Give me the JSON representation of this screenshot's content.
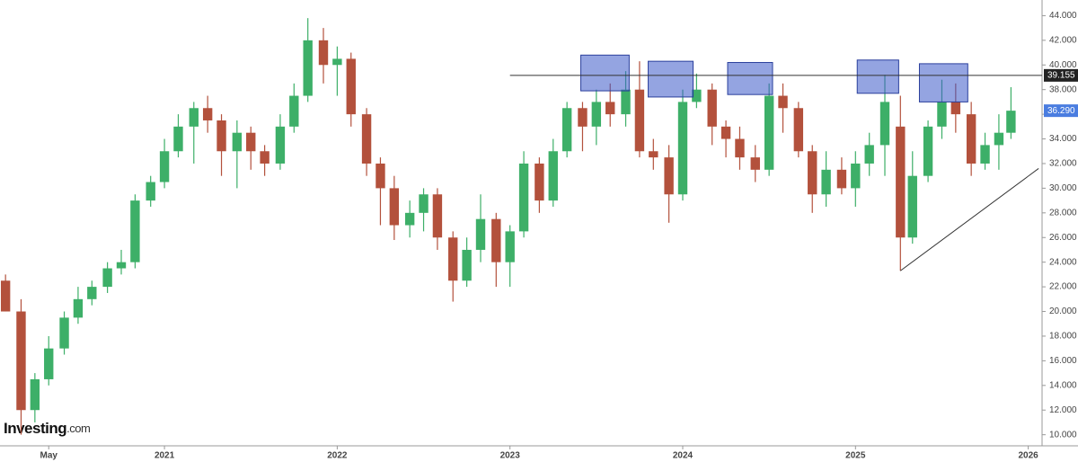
{
  "chart_data": {
    "type": "candlestick",
    "logo_main": "Investing",
    "logo_suffix": ".com",
    "up_color": "#3daf68",
    "down_color": "#b3513c",
    "xlim": [
      2020.048,
      2026.08
    ],
    "xticks": [
      {
        "value": 2020.33,
        "label": "May"
      },
      2021,
      2022,
      2023,
      2024,
      2025,
      2026
    ],
    "ylim": [
      9.1,
      45.27
    ],
    "yticks": [
      {
        "value": 10,
        "label": "10.000"
      },
      {
        "value": 12,
        "label": "12.000"
      },
      {
        "value": 14,
        "label": "14.000"
      },
      {
        "value": 16,
        "label": "16.000"
      },
      {
        "value": 18,
        "label": "18.000"
      },
      {
        "value": 20,
        "label": "20.000"
      },
      {
        "value": 22,
        "label": "22.000"
      },
      {
        "value": 24,
        "label": "24.000"
      },
      {
        "value": 26,
        "label": "26.000"
      },
      {
        "value": 28,
        "label": "28.000"
      },
      {
        "value": 30,
        "label": "30.000"
      },
      {
        "value": 32,
        "label": "32.000"
      },
      {
        "value": 34,
        "label": "34.000"
      },
      {
        "value": 36,
        "label": "36.000"
      },
      {
        "value": 38,
        "label": "38.000"
      },
      {
        "value": 40,
        "label": "40.000"
      },
      {
        "value": 42,
        "label": "42.000"
      },
      {
        "value": 44,
        "label": "44.000"
      }
    ],
    "x": [
      2020.08,
      2020.17,
      2020.25,
      2020.33,
      2020.42,
      2020.5,
      2020.58,
      2020.67,
      2020.75,
      2020.83,
      2020.92,
      2021.0,
      2021.08,
      2021.17,
      2021.25,
      2021.33,
      2021.42,
      2021.5,
      2021.58,
      2021.67,
      2021.75,
      2021.83,
      2021.92,
      2022.0,
      2022.08,
      2022.17,
      2022.25,
      2022.33,
      2022.42,
      2022.5,
      2022.58,
      2022.67,
      2022.75,
      2022.83,
      2022.92,
      2023.0,
      2023.08,
      2023.17,
      2023.25,
      2023.33,
      2023.42,
      2023.5,
      2023.58,
      2023.67,
      2023.75,
      2023.83,
      2023.92,
      2024.0,
      2024.08,
      2024.17,
      2024.25,
      2024.33,
      2024.42,
      2024.5,
      2024.58,
      2024.67,
      2024.75,
      2024.83,
      2024.92,
      2025.0,
      2025.08,
      2025.17,
      2025.26,
      2025.33,
      2025.42,
      2025.5,
      2025.58,
      2025.67,
      2025.75,
      2025.83,
      2025.9
    ],
    "open": [
      22.5,
      20,
      12,
      14.5,
      17,
      19.5,
      21,
      22,
      23.5,
      24,
      29,
      30.5,
      33,
      35,
      36.5,
      35.5,
      33,
      34.5,
      33,
      32,
      35,
      37.5,
      42,
      40,
      40.5,
      36,
      32,
      30,
      27,
      28,
      29.5,
      26,
      22.5,
      25,
      27.5,
      24,
      26.5,
      32,
      29,
      33,
      36.5,
      35,
      37,
      36,
      38,
      33,
      32.5,
      29.5,
      37,
      38,
      35,
      34,
      32.5,
      31.5,
      37.5,
      36.5,
      33,
      29.5,
      31.5,
      30,
      32,
      33.5,
      35,
      26,
      31,
      35,
      37,
      36,
      32,
      33.5,
      34.5
    ],
    "high": [
      23,
      21,
      15,
      18,
      20,
      22,
      22.5,
      24,
      25,
      29.5,
      31,
      34,
      36,
      37,
      37.5,
      36,
      35.5,
      35,
      33.5,
      36,
      38.5,
      43.8,
      43,
      41.5,
      41,
      36.5,
      32.5,
      31,
      29,
      30,
      30,
      26.5,
      26,
      29.5,
      28,
      27,
      33,
      32.5,
      34,
      37,
      37,
      38,
      38.5,
      39.5,
      40.3,
      34,
      33.5,
      38,
      39.3,
      38.5,
      35.5,
      35,
      33.5,
      38.5,
      38.5,
      37,
      33.5,
      33,
      32.5,
      33,
      34.5,
      39.2,
      37.5,
      33,
      35.5,
      38.8,
      38.5,
      37,
      34.5,
      36,
      38.2
    ],
    "low": [
      20,
      10,
      11,
      14,
      16.5,
      19,
      20.5,
      21.5,
      23,
      23.5,
      28.5,
      30,
      32.5,
      32,
      34.5,
      31,
      30,
      31.5,
      31,
      31.5,
      34.5,
      37,
      38.5,
      37.5,
      35,
      31,
      27,
      25.8,
      26,
      26.5,
      25,
      20.8,
      22,
      24,
      22,
      22,
      26,
      28,
      28.5,
      32.5,
      33,
      33.5,
      35,
      35,
      32.5,
      31.5,
      27.2,
      29,
      36.5,
      33.5,
      32.5,
      31.5,
      30.5,
      31,
      34.5,
      32.5,
      28,
      28.5,
      29.5,
      28.5,
      31,
      31,
      23.3,
      25.5,
      30.5,
      34,
      34.5,
      31,
      31.5,
      31.5,
      34
    ],
    "close": [
      20,
      12,
      14.5,
      17,
      19.5,
      21,
      22,
      23.5,
      24,
      29,
      30.5,
      33,
      35,
      36.5,
      35.5,
      33,
      34.5,
      33,
      32,
      35,
      37.5,
      42,
      40,
      40.5,
      36,
      32,
      30,
      27,
      28,
      29.5,
      26,
      22.5,
      25,
      27.5,
      24,
      26.5,
      32,
      29,
      33,
      36.5,
      35,
      37,
      36,
      38,
      33,
      32.5,
      29.5,
      37,
      38,
      35,
      34,
      32.5,
      31.5,
      37.5,
      36.5,
      33,
      29.5,
      31.5,
      30,
      32,
      33.5,
      37,
      26,
      31,
      35,
      37,
      36,
      32,
      33.5,
      34.5,
      36.29
    ],
    "zones": [
      {
        "x": [
          2023.41,
          2023.69
        ],
        "y": [
          37.9,
          40.8
        ]
      },
      {
        "x": [
          2023.8,
          2024.06
        ],
        "y": [
          37.4,
          40.3
        ]
      },
      {
        "x": [
          2024.26,
          2024.52
        ],
        "y": [
          37.6,
          40.2
        ]
      },
      {
        "x": [
          2025.01,
          2025.25
        ],
        "y": [
          37.7,
          40.4
        ]
      },
      {
        "x": [
          2025.37,
          2025.65
        ],
        "y": [
          37.0,
          40.1
        ]
      }
    ],
    "resistance": {
      "value": 39.155,
      "label": "39.155",
      "x_start": 2023.0
    },
    "trendline": {
      "x": [
        2025.26,
        2026.06
      ],
      "y": [
        23.3,
        31.6
      ]
    },
    "last_price": {
      "value": 36.29,
      "label": "36.290"
    }
  }
}
